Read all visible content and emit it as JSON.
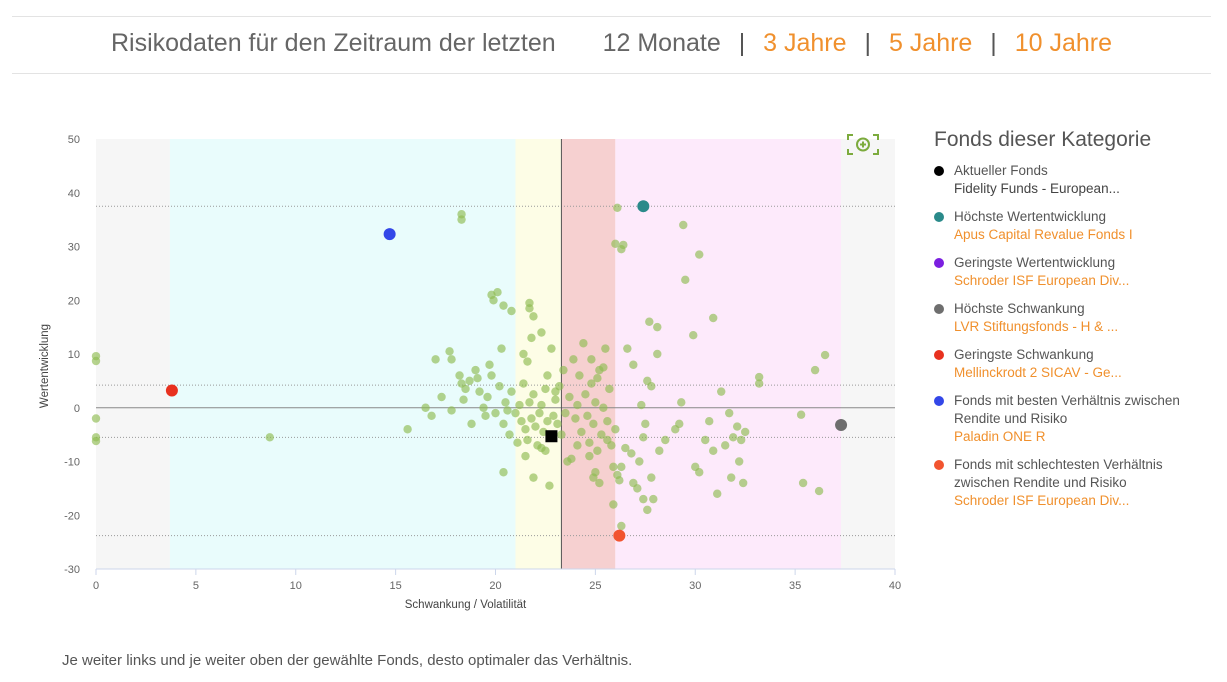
{
  "header": {
    "lead": "Risikodaten für den Zeitraum der letzten",
    "periods": [
      {
        "label": "12 Monate",
        "active": true
      },
      {
        "label": "3 Jahre",
        "active": false
      },
      {
        "label": "5 Jahre",
        "active": false
      },
      {
        "label": "10 Jahre",
        "active": false
      }
    ],
    "separator": "|"
  },
  "legend": {
    "title": "Fonds dieser Kategorie",
    "items": [
      {
        "label": "Aktueller Fonds",
        "fund": "Fidelity Funds - European...",
        "color": "#000000",
        "linked": false
      },
      {
        "label": "Höchste Wertentwicklung",
        "fund": "Apus Capital Revalue Fonds I",
        "color": "#2a8a8a",
        "linked": true
      },
      {
        "label": "Geringste Wertentwicklung",
        "fund": "Schroder ISF European Div...",
        "color": "#7b1fe0",
        "linked": true
      },
      {
        "label": "Höchste Schwankung",
        "fund": "LVR Stiftungsfonds - H & ...",
        "color": "#6e6e6e",
        "linked": true
      },
      {
        "label": "Geringste Schwankung",
        "fund": "Mellinckrodt 2 SICAV - Ge...",
        "color": "#e8311f",
        "linked": true
      },
      {
        "label": "Fonds mit besten Verhältnis zwischen Rendite und Risiko",
        "fund": "Paladin ONE R",
        "color": "#3347e8",
        "linked": true
      },
      {
        "label": "Fonds mit schlechtesten Verhältnis zwischen Rendite und Risiko",
        "fund": "Schroder ISF European Div...",
        "color": "#f2542f",
        "linked": true
      }
    ]
  },
  "note": "Je weiter links und je weiter oben der gewählte Fonds, desto optimaler das Verhältnis.",
  "icons": {
    "zoom": "zoom-in-icon"
  },
  "chart_data": {
    "type": "scatter",
    "xlabel": "Schwankung / Volatilität",
    "ylabel": "Wertentwicklung",
    "xlim": [
      0,
      40
    ],
    "ylim": [
      -30,
      50
    ],
    "xticks": [
      0,
      5,
      10,
      15,
      20,
      25,
      30,
      35,
      40
    ],
    "yticks": [
      50,
      40,
      30,
      20,
      10,
      0,
      -10,
      -20,
      -30
    ],
    "grid": false,
    "background_bands": [
      {
        "from": 0,
        "to": 3.7,
        "color": "#f6f6f6"
      },
      {
        "from": 3.7,
        "to": 21,
        "color": "#e9fcfc"
      },
      {
        "from": 21,
        "to": 23.3,
        "color": "#fdfde6"
      },
      {
        "from": 23.3,
        "to": 26,
        "color": "#f6d0d0"
      },
      {
        "from": 26,
        "to": 37.3,
        "color": "#fdeafb"
      },
      {
        "from": 37.3,
        "to": 40,
        "color": "#f6f6f6"
      }
    ],
    "reference_lines": {
      "vertical_x": 23.3,
      "horizontal_y": [
        37.5,
        4.2,
        -5.5,
        -23.8
      ],
      "zero_line": 0
    },
    "highlight_points": [
      {
        "name": "Aktueller Fonds",
        "x": 22.8,
        "y": -5.3,
        "color": "#000000",
        "shape": "square"
      },
      {
        "name": "Höchste Wertentwicklung",
        "x": 27.4,
        "y": 37.5,
        "color": "#2a8a8a",
        "shape": "circle"
      },
      {
        "name": "Höchste Schwankung",
        "x": 37.3,
        "y": -3.2,
        "color": "#6e6e6e",
        "shape": "circle"
      },
      {
        "name": "Geringste Schwankung",
        "x": 3.8,
        "y": 3.2,
        "color": "#e8311f",
        "shape": "circle"
      },
      {
        "name": "Fonds mit besten Verhältnis zwischen Rendite und Risiko",
        "x": 14.7,
        "y": 32.3,
        "color": "#3347e8",
        "shape": "circle"
      },
      {
        "name": "Fonds mit schlechtesten Verhältnis zwischen Rendite und Risiko",
        "x": 26.2,
        "y": -23.8,
        "color": "#f2542f",
        "shape": "circle"
      }
    ],
    "peer_color": "#8fbc52",
    "peer_points": [
      [
        0,
        9.6
      ],
      [
        0,
        8.7
      ],
      [
        0,
        -2
      ],
      [
        0,
        -5.5
      ],
      [
        0,
        -6.2
      ],
      [
        8.7,
        -5.5
      ],
      [
        15.6,
        -4
      ],
      [
        18.3,
        36
      ],
      [
        18.3,
        35
      ],
      [
        19.8,
        21
      ],
      [
        19.9,
        20
      ],
      [
        20.1,
        21.5
      ],
      [
        20.4,
        19
      ],
      [
        20.8,
        18
      ],
      [
        21.7,
        19.5
      ],
      [
        21.7,
        18.5
      ],
      [
        21.9,
        17
      ],
      [
        22.3,
        14
      ],
      [
        21.4,
        10
      ],
      [
        21.6,
        8.6
      ],
      [
        21.8,
        13
      ],
      [
        22.6,
        6
      ],
      [
        22.8,
        11
      ],
      [
        23.0,
        3
      ],
      [
        17,
        9
      ],
      [
        17.7,
        10.5
      ],
      [
        17.8,
        9
      ],
      [
        18.2,
        6
      ],
      [
        18.3,
        4.5
      ],
      [
        18.5,
        3.5
      ],
      [
        18.7,
        5
      ],
      [
        19,
        7
      ],
      [
        19.2,
        3
      ],
      [
        19.4,
        0
      ],
      [
        19.5,
        -1.5
      ],
      [
        19.6,
        2
      ],
      [
        19.8,
        6
      ],
      [
        20,
        -1
      ],
      [
        20.2,
        4
      ],
      [
        20.4,
        -3
      ],
      [
        20.5,
        1
      ],
      [
        20.7,
        -5
      ],
      [
        20.8,
        3
      ],
      [
        21,
        -1
      ],
      [
        21.2,
        0.5
      ],
      [
        21.3,
        -2.5
      ],
      [
        21.4,
        4.5
      ],
      [
        21.5,
        -4
      ],
      [
        21.6,
        -6
      ],
      [
        21.7,
        1
      ],
      [
        21.8,
        -2
      ],
      [
        21.9,
        2.5
      ],
      [
        22,
        -3.5
      ],
      [
        22.1,
        -7
      ],
      [
        22.2,
        -1
      ],
      [
        22.3,
        0.5
      ],
      [
        22.4,
        -4.5
      ],
      [
        22.5,
        3.5
      ],
      [
        22.6,
        -2.5
      ],
      [
        22.9,
        -1.5
      ],
      [
        23,
        1.5
      ],
      [
        23.1,
        -3
      ],
      [
        23.2,
        4
      ],
      [
        23.5,
        -1
      ],
      [
        23.7,
        2
      ],
      [
        23.8,
        -9.5
      ],
      [
        24,
        -2
      ],
      [
        24.1,
        0.5
      ],
      [
        24.2,
        6
      ],
      [
        24.3,
        -4.5
      ],
      [
        24.4,
        12
      ],
      [
        24.5,
        2.5
      ],
      [
        24.6,
        -1.5
      ],
      [
        24.7,
        -6.5
      ],
      [
        24.8,
        4.5
      ],
      [
        24.9,
        -3
      ],
      [
        25,
        1
      ],
      [
        25.1,
        -8
      ],
      [
        25.2,
        7
      ],
      [
        25.3,
        -5
      ],
      [
        25.4,
        0
      ],
      [
        25.5,
        11
      ],
      [
        25.6,
        -2.5
      ],
      [
        25.7,
        3.5
      ],
      [
        25.8,
        -7
      ],
      [
        25.9,
        -11
      ],
      [
        26,
        -4
      ],
      [
        25,
        -12
      ],
      [
        24.9,
        -13
      ],
      [
        25.2,
        -14
      ],
      [
        25.9,
        -18
      ],
      [
        26.1,
        -12.5
      ],
      [
        26.2,
        -13.5
      ],
      [
        26.3,
        -11
      ],
      [
        26.3,
        -22
      ],
      [
        26,
        30.5
      ],
      [
        26.1,
        37.2
      ],
      [
        26.3,
        29.5
      ],
      [
        26.4,
        30.3
      ],
      [
        27.7,
        16
      ],
      [
        28.1,
        15
      ],
      [
        28.1,
        10
      ],
      [
        27.6,
        5
      ],
      [
        27.8,
        4
      ],
      [
        27.3,
        0.5
      ],
      [
        27.5,
        -3
      ],
      [
        27.4,
        -5.5
      ],
      [
        27.2,
        -10
      ],
      [
        27.8,
        -13
      ],
      [
        27.4,
        -17
      ],
      [
        27.6,
        -19
      ],
      [
        27.9,
        -17
      ],
      [
        28.2,
        -8
      ],
      [
        28.5,
        -6
      ],
      [
        29,
        -4
      ],
      [
        29.2,
        -3
      ],
      [
        29.3,
        1
      ],
      [
        29.4,
        34
      ],
      [
        29.5,
        23.8
      ],
      [
        29.9,
        13.5
      ],
      [
        30.2,
        28.5
      ],
      [
        30,
        -11
      ],
      [
        30.2,
        -12
      ],
      [
        30.5,
        -6
      ],
      [
        30.7,
        -2.5
      ],
      [
        30.9,
        16.7
      ],
      [
        30.9,
        -8
      ],
      [
        31.1,
        -16
      ],
      [
        31.3,
        3
      ],
      [
        31.5,
        -7
      ],
      [
        31.7,
        -1
      ],
      [
        31.9,
        -5.5
      ],
      [
        32.1,
        -3.5
      ],
      [
        32.3,
        -6
      ],
      [
        32.5,
        -4.5
      ],
      [
        32.2,
        -10
      ],
      [
        31.8,
        -13
      ],
      [
        32.4,
        -14
      ],
      [
        33.2,
        5.7
      ],
      [
        33.2,
        4.5
      ],
      [
        35.3,
        -1.3
      ],
      [
        35.4,
        -14
      ],
      [
        36,
        7
      ],
      [
        36.2,
        -15.5
      ],
      [
        36.5,
        9.8
      ],
      [
        16.5,
        0
      ],
      [
        16.8,
        -1.5
      ],
      [
        17.3,
        2
      ],
      [
        17.8,
        -0.5
      ],
      [
        18.4,
        1.5
      ],
      [
        18.8,
        -3
      ],
      [
        19.1,
        5.5
      ],
      [
        19.7,
        8
      ],
      [
        20.3,
        11
      ],
      [
        20.6,
        -0.5
      ],
      [
        21.1,
        -6.5
      ],
      [
        21.5,
        -9
      ],
      [
        22.5,
        -8
      ],
      [
        22.3,
        -7.5
      ],
      [
        23.3,
        -5
      ],
      [
        23.6,
        -10
      ],
      [
        24.1,
        -7
      ],
      [
        24.7,
        -9
      ],
      [
        25.6,
        -6
      ],
      [
        26.5,
        -7.5
      ],
      [
        26.8,
        -8.5
      ],
      [
        26.9,
        -14
      ],
      [
        27.1,
        -15
      ],
      [
        24.8,
        9
      ],
      [
        25.1,
        5.5
      ],
      [
        25.4,
        7.5
      ],
      [
        26.6,
        11
      ],
      [
        26.9,
        8
      ],
      [
        23.4,
        7
      ],
      [
        23.9,
        9
      ],
      [
        22.7,
        -14.5
      ],
      [
        21.9,
        -13
      ],
      [
        20.4,
        -12
      ]
    ]
  }
}
